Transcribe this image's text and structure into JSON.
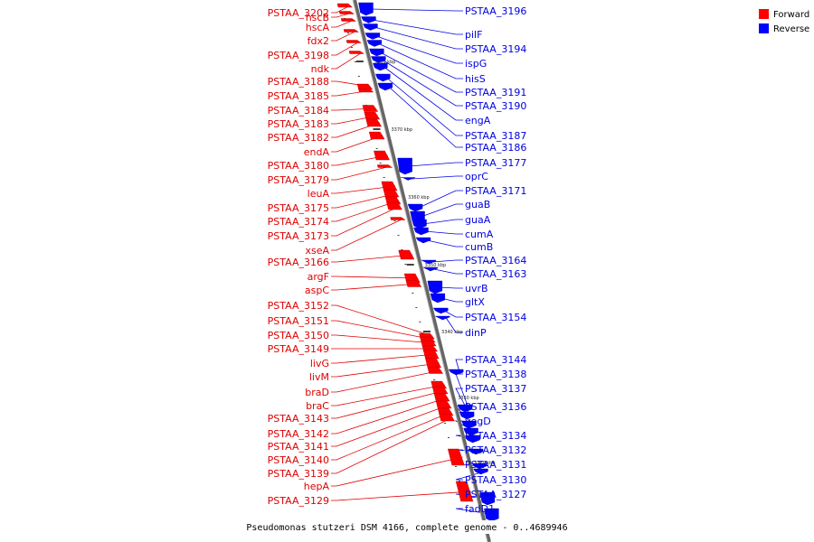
{
  "legend": [
    {
      "label": "Forward",
      "color": "#ff0000"
    },
    {
      "label": "Reverse",
      "color": "#0000ff"
    }
  ],
  "colors": {
    "forward": "#ff0000",
    "reverse": "#0000ff",
    "forward_line": "#e00000",
    "reverse_line": "#0000e0"
  },
  "caption": "Pseudomonas stutzeri DSM 4166, complete genome - 0..4689946",
  "kbp_ticks": [
    "3380 kbp",
    "3370 kbp",
    "3360 kbp",
    "3350 kbp",
    "3340 kbp",
    "3330 kbp",
    "3320 kbp"
  ],
  "forward_genes": [
    "PSTAA_3202",
    "hscB",
    "hscA",
    "fdx2",
    "PSTAA_3198",
    "ndk",
    "PSTAA_3188",
    "PSTAA_3185",
    "PSTAA_3184",
    "PSTAA_3183",
    "PSTAA_3182",
    "endA",
    "PSTAA_3180",
    "PSTAA_3179",
    "leuA",
    "PSTAA_3175",
    "PSTAA_3174",
    "PSTAA_3173",
    "xseA",
    "PSTAA_3166",
    "argF",
    "aspC",
    "PSTAA_3152",
    "PSTAA_3151",
    "PSTAA_3150",
    "PSTAA_3149",
    "livG",
    "livM",
    "braD",
    "braC",
    "PSTAA_3143",
    "PSTAA_3142",
    "PSTAA_3141",
    "PSTAA_3140",
    "PSTAA_3139",
    "hepA",
    "PSTAA_3129"
  ],
  "reverse_genes": [
    "PSTAA_3196",
    "pilF",
    "PSTAA_3194",
    "ispG",
    "hisS",
    "PSTAA_3191",
    "PSTAA_3190",
    "engA",
    "PSTAA_3187",
    "PSTAA_3186",
    "PSTAA_3177",
    "oprC",
    "PSTAA_3171",
    "guaB",
    "guaA",
    "cumA",
    "cumB",
    "PSTAA_3164",
    "PSTAA_3163",
    "uvrB",
    "gltX",
    "PSTAA_3154",
    "dinP",
    "PSTAA_3144",
    "PSTAA_3138",
    "PSTAA_3137",
    "PSTAA_3136",
    "yegD",
    "PSTAA_3134",
    "PSTAA_3132",
    "PSTAA_3131",
    "PSTAA_3130",
    "PSTAA_3127",
    "fadD1"
  ]
}
